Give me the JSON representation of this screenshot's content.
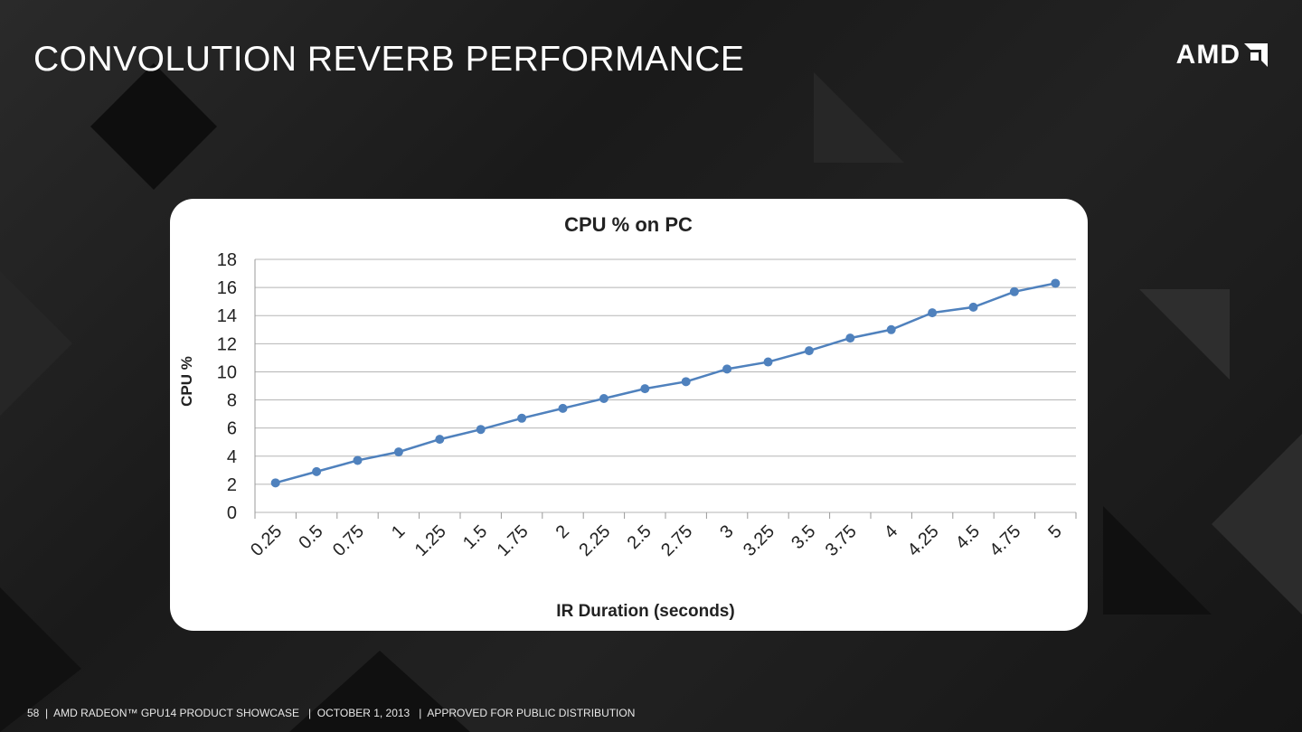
{
  "slide": {
    "title": "CONVOLUTION REVERB PERFORMANCE",
    "logo_text": "AMD",
    "footer": "58  |  AMD RADEON™ GPU14 PRODUCT SHOWCASE   |  OCTOBER 1, 2013   |  APPROVED FOR PUBLIC DISTRIBUTION"
  },
  "chart_data": {
    "type": "line",
    "title": "CPU % on PC",
    "xlabel": "IR Duration (seconds)",
    "ylabel": "CPU %",
    "categories": [
      "0.25",
      "0.5",
      "0.75",
      "1",
      "1.25",
      "1.5",
      "1.75",
      "2",
      "2.25",
      "2.5",
      "2.75",
      "3",
      "3.25",
      "3.5",
      "3.75",
      "4",
      "4.25",
      "4.5",
      "4.75",
      "5"
    ],
    "values": [
      2.1,
      2.9,
      3.7,
      4.3,
      5.2,
      5.9,
      6.7,
      7.4,
      8.1,
      8.8,
      9.3,
      10.2,
      10.7,
      11.5,
      12.4,
      13.0,
      14.2,
      14.6,
      15.7,
      16.3
    ],
    "ylim": [
      0,
      18
    ],
    "yticks": [
      "0",
      "2",
      "4",
      "6",
      "8",
      "10",
      "12",
      "14",
      "16",
      "18"
    ],
    "grid": true,
    "legend": "none",
    "series_color": "#4f81bd"
  }
}
